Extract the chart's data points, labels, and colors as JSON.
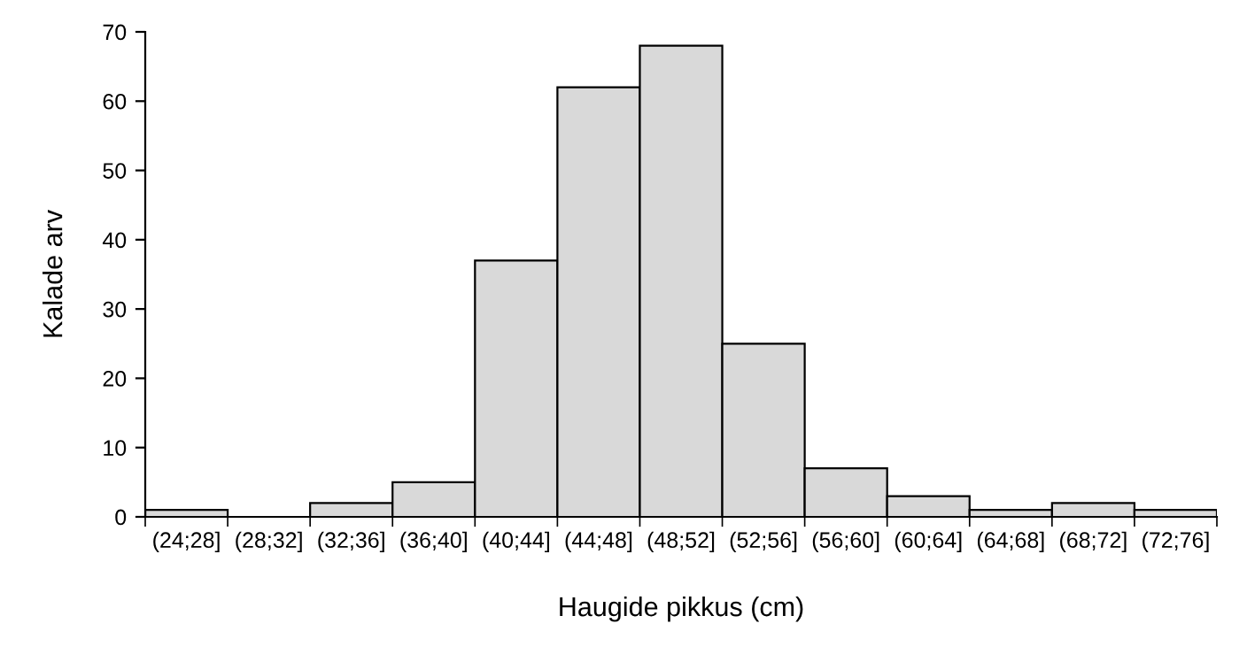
{
  "chart_data": {
    "type": "bar",
    "xlabel": "Haugide pikkus (cm)",
    "ylabel": "Kalade arv",
    "categories": [
      "(24;28]",
      "(28;32]",
      "(32;36]",
      "(36;40]",
      "(40;44]",
      "(44;48]",
      "(48;52]",
      "(52;56]",
      "(56;60]",
      "(60;64]",
      "(64;68]",
      "(68;72]",
      "(72;76]"
    ],
    "values": [
      1,
      0,
      2,
      5,
      37,
      62,
      68,
      25,
      7,
      3,
      1,
      2,
      1
    ],
    "color": "#d9d9d9",
    "ylim": [
      0,
      70
    ],
    "yticks": [
      0,
      10,
      20,
      30,
      40,
      50,
      60,
      70
    ],
    "grid": false,
    "legend": false
  }
}
